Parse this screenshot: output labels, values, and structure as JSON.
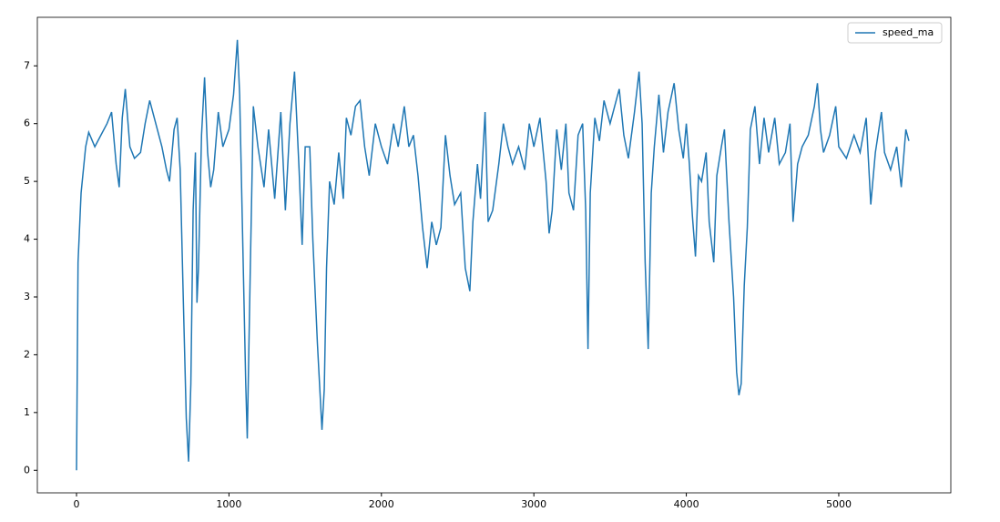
{
  "chart_data": {
    "type": "line",
    "x": [
      0,
      10,
      30,
      60,
      80,
      120,
      160,
      200,
      230,
      260,
      280,
      300,
      320,
      350,
      380,
      420,
      450,
      480,
      520,
      560,
      590,
      610,
      640,
      660,
      680,
      700,
      720,
      735,
      750,
      765,
      780,
      790,
      800,
      820,
      840,
      860,
      880,
      900,
      930,
      960,
      1000,
      1030,
      1055,
      1070,
      1090,
      1110,
      1120,
      1140,
      1160,
      1190,
      1230,
      1260,
      1300,
      1340,
      1370,
      1400,
      1430,
      1460,
      1480,
      1500,
      1530,
      1550,
      1580,
      1610,
      1625,
      1640,
      1660,
      1690,
      1720,
      1750,
      1770,
      1800,
      1830,
      1860,
      1890,
      1920,
      1960,
      2000,
      2040,
      2080,
      2110,
      2150,
      2180,
      2210,
      2240,
      2270,
      2300,
      2330,
      2360,
      2390,
      2420,
      2450,
      2480,
      2520,
      2550,
      2580,
      2600,
      2630,
      2650,
      2680,
      2700,
      2730,
      2770,
      2800,
      2830,
      2860,
      2900,
      2940,
      2970,
      3000,
      3040,
      3080,
      3100,
      3120,
      3150,
      3180,
      3210,
      3230,
      3260,
      3290,
      3320,
      3340,
      3355,
      3370,
      3400,
      3430,
      3460,
      3500,
      3540,
      3560,
      3590,
      3620,
      3660,
      3690,
      3710,
      3730,
      3750,
      3770,
      3790,
      3820,
      3850,
      3880,
      3920,
      3950,
      3980,
      4000,
      4020,
      4040,
      4060,
      4080,
      4100,
      4130,
      4150,
      4180,
      4200,
      4230,
      4250,
      4280,
      4310,
      4330,
      4345,
      4360,
      4380,
      4400,
      4420,
      4450,
      4480,
      4510,
      4540,
      4580,
      4610,
      4650,
      4680,
      4700,
      4730,
      4760,
      4800,
      4840,
      4860,
      4880,
      4900,
      4940,
      4980,
      5000,
      5050,
      5100,
      5140,
      5180,
      5210,
      5240,
      5280,
      5300,
      5340,
      5380,
      5410,
      5440,
      5460
    ],
    "series": [
      {
        "name": "speed_ma",
        "color": "#1f77b4",
        "values": [
          0,
          3.6,
          4.8,
          5.6,
          5.85,
          5.6,
          5.8,
          6.0,
          6.2,
          5.3,
          4.9,
          6.1,
          6.6,
          5.6,
          5.4,
          5.5,
          6.0,
          6.4,
          6.0,
          5.6,
          5.2,
          5.0,
          5.9,
          6.1,
          5.2,
          3.0,
          0.9,
          0.15,
          1.5,
          4.5,
          5.5,
          2.9,
          3.5,
          5.8,
          6.8,
          5.5,
          4.9,
          5.2,
          6.2,
          5.6,
          5.9,
          6.5,
          7.45,
          6.5,
          4.0,
          1.5,
          0.55,
          3.5,
          6.3,
          5.6,
          4.9,
          5.9,
          4.7,
          6.2,
          4.5,
          6.0,
          6.9,
          5.2,
          3.9,
          5.6,
          5.6,
          4.0,
          2.2,
          0.7,
          1.4,
          3.5,
          5.0,
          4.6,
          5.5,
          4.7,
          6.1,
          5.8,
          6.3,
          6.4,
          5.6,
          5.1,
          6.0,
          5.6,
          5.3,
          6.0,
          5.6,
          6.3,
          5.6,
          5.8,
          5.1,
          4.2,
          3.5,
          4.3,
          3.9,
          4.2,
          5.8,
          5.1,
          4.6,
          4.8,
          3.5,
          3.1,
          4.3,
          5.3,
          4.7,
          6.2,
          4.3,
          4.5,
          5.3,
          6.0,
          5.6,
          5.3,
          5.6,
          5.2,
          6.0,
          5.6,
          6.1,
          5.0,
          4.1,
          4.5,
          5.9,
          5.2,
          6.0,
          4.8,
          4.5,
          5.8,
          6.0,
          4.5,
          2.1,
          4.8,
          6.1,
          5.7,
          6.4,
          6.0,
          6.4,
          6.6,
          5.8,
          5.4,
          6.2,
          6.9,
          6.0,
          3.6,
          2.1,
          4.8,
          5.6,
          6.5,
          5.5,
          6.2,
          6.7,
          5.9,
          5.4,
          6.0,
          5.3,
          4.4,
          3.7,
          5.1,
          5.0,
          5.5,
          4.3,
          3.6,
          5.1,
          5.6,
          5.9,
          4.3,
          3.0,
          1.7,
          1.3,
          1.5,
          3.2,
          4.2,
          5.9,
          6.3,
          5.3,
          6.1,
          5.5,
          6.1,
          5.3,
          5.5,
          6.0,
          4.3,
          5.3,
          5.6,
          5.8,
          6.3,
          6.7,
          5.9,
          5.5,
          5.8,
          6.3,
          5.6,
          5.4,
          5.8,
          5.5,
          6.1,
          4.6,
          5.5,
          6.2,
          5.5,
          5.2,
          5.6,
          4.9,
          5.9,
          5.7
        ]
      }
    ],
    "xlim": [
      -257,
      5735
    ],
    "ylim": [
      -0.39,
      7.84
    ],
    "xticks": [
      0,
      1000,
      2000,
      3000,
      4000,
      5000
    ],
    "yticks": [
      0,
      1,
      2,
      3,
      4,
      5,
      6,
      7
    ],
    "legend": "upper right"
  }
}
